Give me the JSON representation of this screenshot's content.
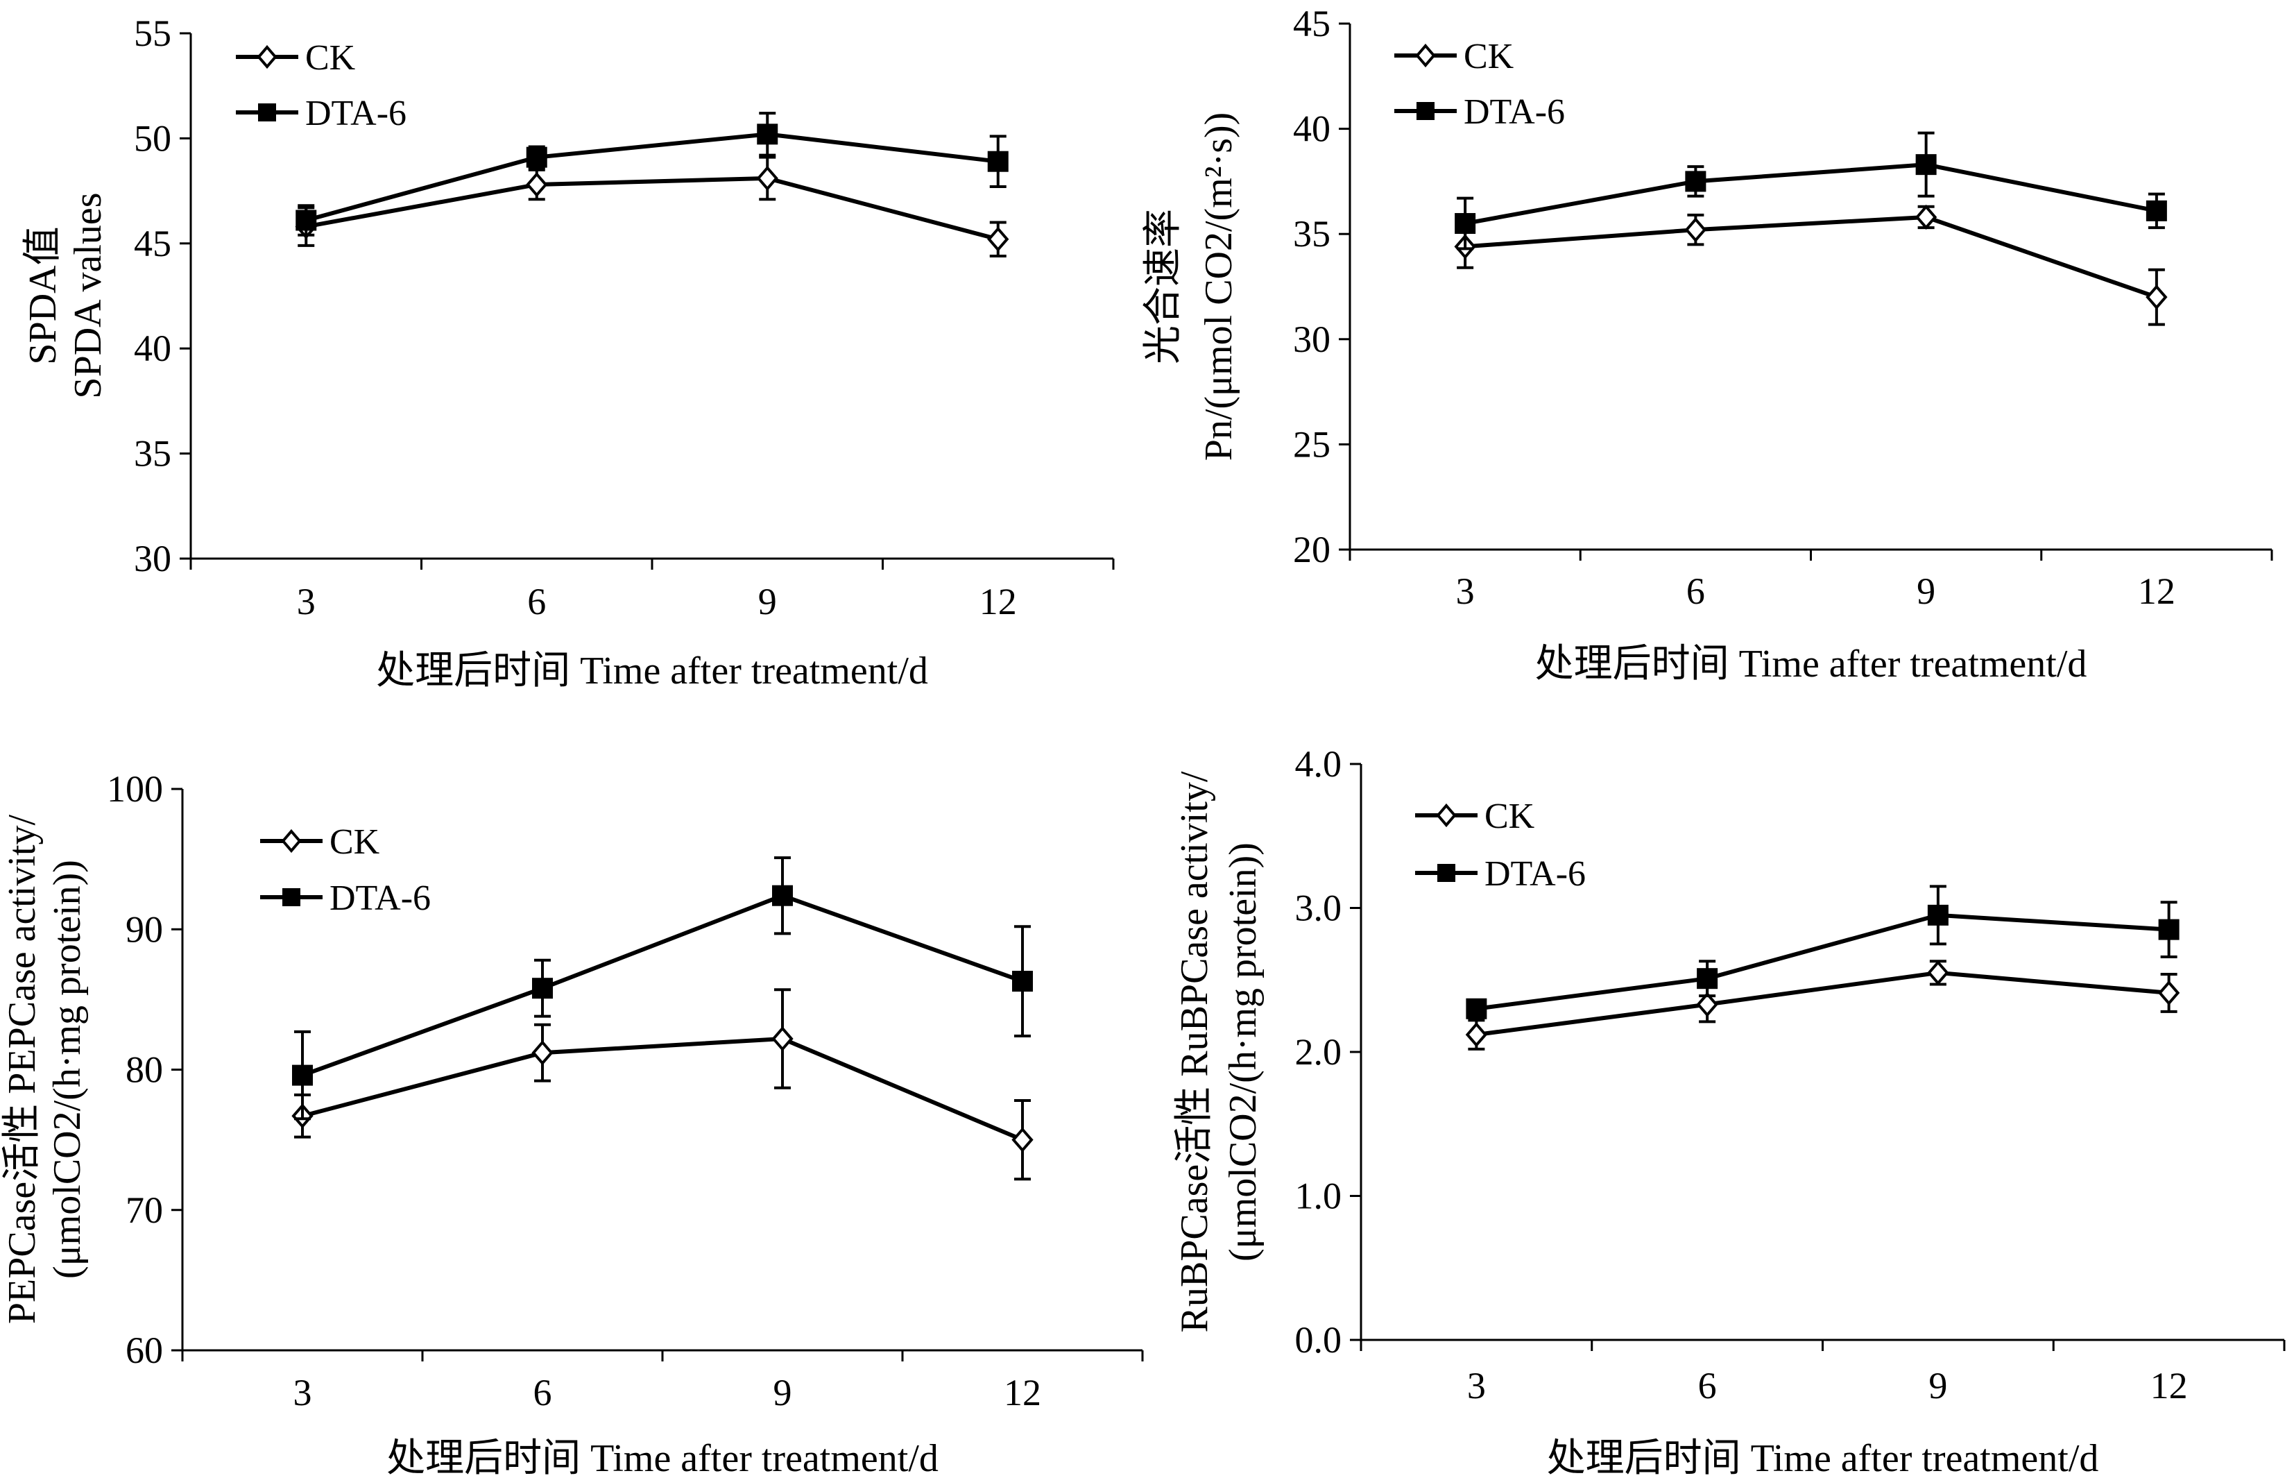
{
  "chart_data": [
    {
      "type": "line",
      "x": [
        3,
        6,
        9,
        12
      ],
      "categories": [
        "3",
        "6",
        "9",
        "12"
      ],
      "ylim": [
        30,
        55
      ],
      "yticks": [
        "30",
        "35",
        "40",
        "45",
        "50",
        "55"
      ],
      "ylabel_lines": [
        "SPDA值",
        "SPDA values"
      ],
      "xlabel": "处理后时间 Time after treatment/d",
      "legend": "top-left",
      "series": [
        {
          "name": "CK",
          "marker": "open-diamond",
          "values": [
            45.8,
            47.8,
            48.1,
            45.2
          ],
          "errors": [
            0.9,
            0.7,
            1.0,
            0.8
          ]
        },
        {
          "name": "DTA-6",
          "marker": "filled-square",
          "values": [
            46.1,
            49.1,
            50.2,
            48.9
          ],
          "errors": [
            0.7,
            0.5,
            1.0,
            1.2
          ]
        }
      ]
    },
    {
      "type": "line",
      "x": [
        3,
        6,
        9,
        12
      ],
      "categories": [
        "3",
        "6",
        "9",
        "12"
      ],
      "ylim": [
        20,
        45
      ],
      "yticks": [
        "20",
        "25",
        "30",
        "35",
        "40",
        "45"
      ],
      "ylabel_lines": [
        "光合速率",
        "Pn/(μmol CO2/(m²·s))"
      ],
      "xlabel": "处理后时间 Time after treatment/d",
      "legend": "top-left",
      "series": [
        {
          "name": "CK",
          "marker": "open-diamond",
          "values": [
            34.4,
            35.2,
            35.8,
            32.0
          ],
          "errors": [
            1.0,
            0.7,
            0.5,
            1.3
          ]
        },
        {
          "name": "DTA-6",
          "marker": "filled-square",
          "values": [
            35.5,
            37.5,
            38.3,
            36.1
          ],
          "errors": [
            1.2,
            0.7,
            1.5,
            0.8
          ]
        }
      ]
    },
    {
      "type": "line",
      "x": [
        3,
        6,
        9,
        12
      ],
      "categories": [
        "3",
        "6",
        "9",
        "12"
      ],
      "ylim": [
        60,
        100
      ],
      "yticks": [
        "60",
        "70",
        "80",
        "90",
        "100"
      ],
      "ylabel_lines": [
        "PEPCase活性  PEPCase activity/",
        "(μmolCO2/(h·mg protein))"
      ],
      "xlabel": "处理后时间 Time after treatment/d",
      "legend": "top-left",
      "series": [
        {
          "name": "CK",
          "marker": "open-diamond",
          "values": [
            76.7,
            81.2,
            82.2,
            75.0
          ],
          "errors": [
            1.5,
            2.0,
            3.5,
            2.8
          ]
        },
        {
          "name": "DTA-6",
          "marker": "filled-square",
          "values": [
            79.6,
            85.8,
            92.4,
            86.3
          ],
          "errors": [
            3.1,
            2.0,
            2.7,
            3.9
          ]
        }
      ]
    },
    {
      "type": "line",
      "x": [
        3,
        6,
        9,
        12
      ],
      "categories": [
        "3",
        "6",
        "9",
        "12"
      ],
      "ylim": [
        0,
        4
      ],
      "yticks": [
        "0.0",
        "1.0",
        "2.0",
        "3.0",
        "4.0"
      ],
      "ylabel_lines": [
        "RuBPCase活性  RuBPCase activity/",
        "(μmolCO2/(h·mg protein))"
      ],
      "xlabel": "处理后时间 Time after treatment/d",
      "legend": "top-left",
      "series": [
        {
          "name": "CK",
          "marker": "open-diamond",
          "values": [
            2.12,
            2.33,
            2.55,
            2.41
          ],
          "errors": [
            0.1,
            0.12,
            0.08,
            0.13
          ]
        },
        {
          "name": "DTA-6",
          "marker": "filled-square",
          "values": [
            2.3,
            2.51,
            2.95,
            2.85
          ],
          "errors": [
            0.05,
            0.12,
            0.2,
            0.19
          ]
        }
      ]
    }
  ]
}
